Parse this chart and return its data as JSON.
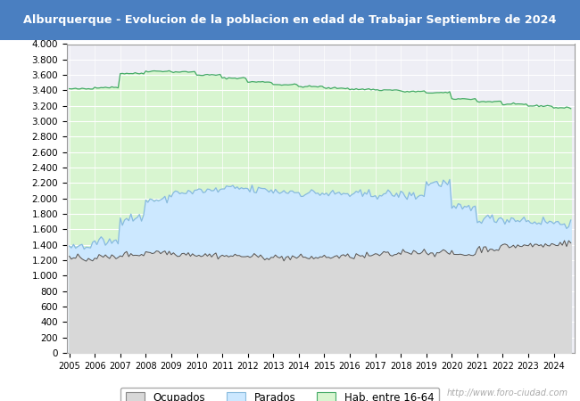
{
  "title": "Alburquerque - Evolucion de la poblacion en edad de Trabajar Septiembre de 2024",
  "title_bg": "#4a7fc1",
  "title_color": "white",
  "ylim": [
    0,
    4000
  ],
  "ytick_step": 200,
  "color_hab": "#d8f5d0",
  "color_hab_line": "#44aa66",
  "color_parados": "#cce8ff",
  "color_parados_line": "#88bbdd",
  "color_ocupados_fill": "#d8d8d8",
  "color_ocupados_line": "#555555",
  "legend_labels": [
    "Ocupados",
    "Parados",
    "Hab. entre 16-64"
  ],
  "watermark": "http://www.foro-ciudad.com",
  "plot_bg": "#eeeef5",
  "figsize": [
    6.5,
    4.5
  ],
  "dpi": 100,
  "x_start_year": 2005,
  "x_end_year": 2024,
  "hab1664_annual": [
    3420,
    3440,
    3620,
    3650,
    3640,
    3600,
    3560,
    3510,
    3475,
    3450,
    3430,
    3415,
    3405,
    3385,
    3370,
    3290,
    3255,
    3220,
    3200,
    3175
  ],
  "parados_annual": [
    1380,
    1440,
    1750,
    1980,
    2080,
    2100,
    2130,
    2110,
    2090,
    2070,
    2060,
    2050,
    2055,
    2040,
    2200,
    1870,
    1740,
    1730,
    1700,
    1680
  ],
  "ocupados_annual": [
    1220,
    1240,
    1275,
    1305,
    1285,
    1265,
    1255,
    1245,
    1235,
    1235,
    1245,
    1255,
    1275,
    1310,
    1300,
    1275,
    1350,
    1385,
    1395,
    1420
  ]
}
